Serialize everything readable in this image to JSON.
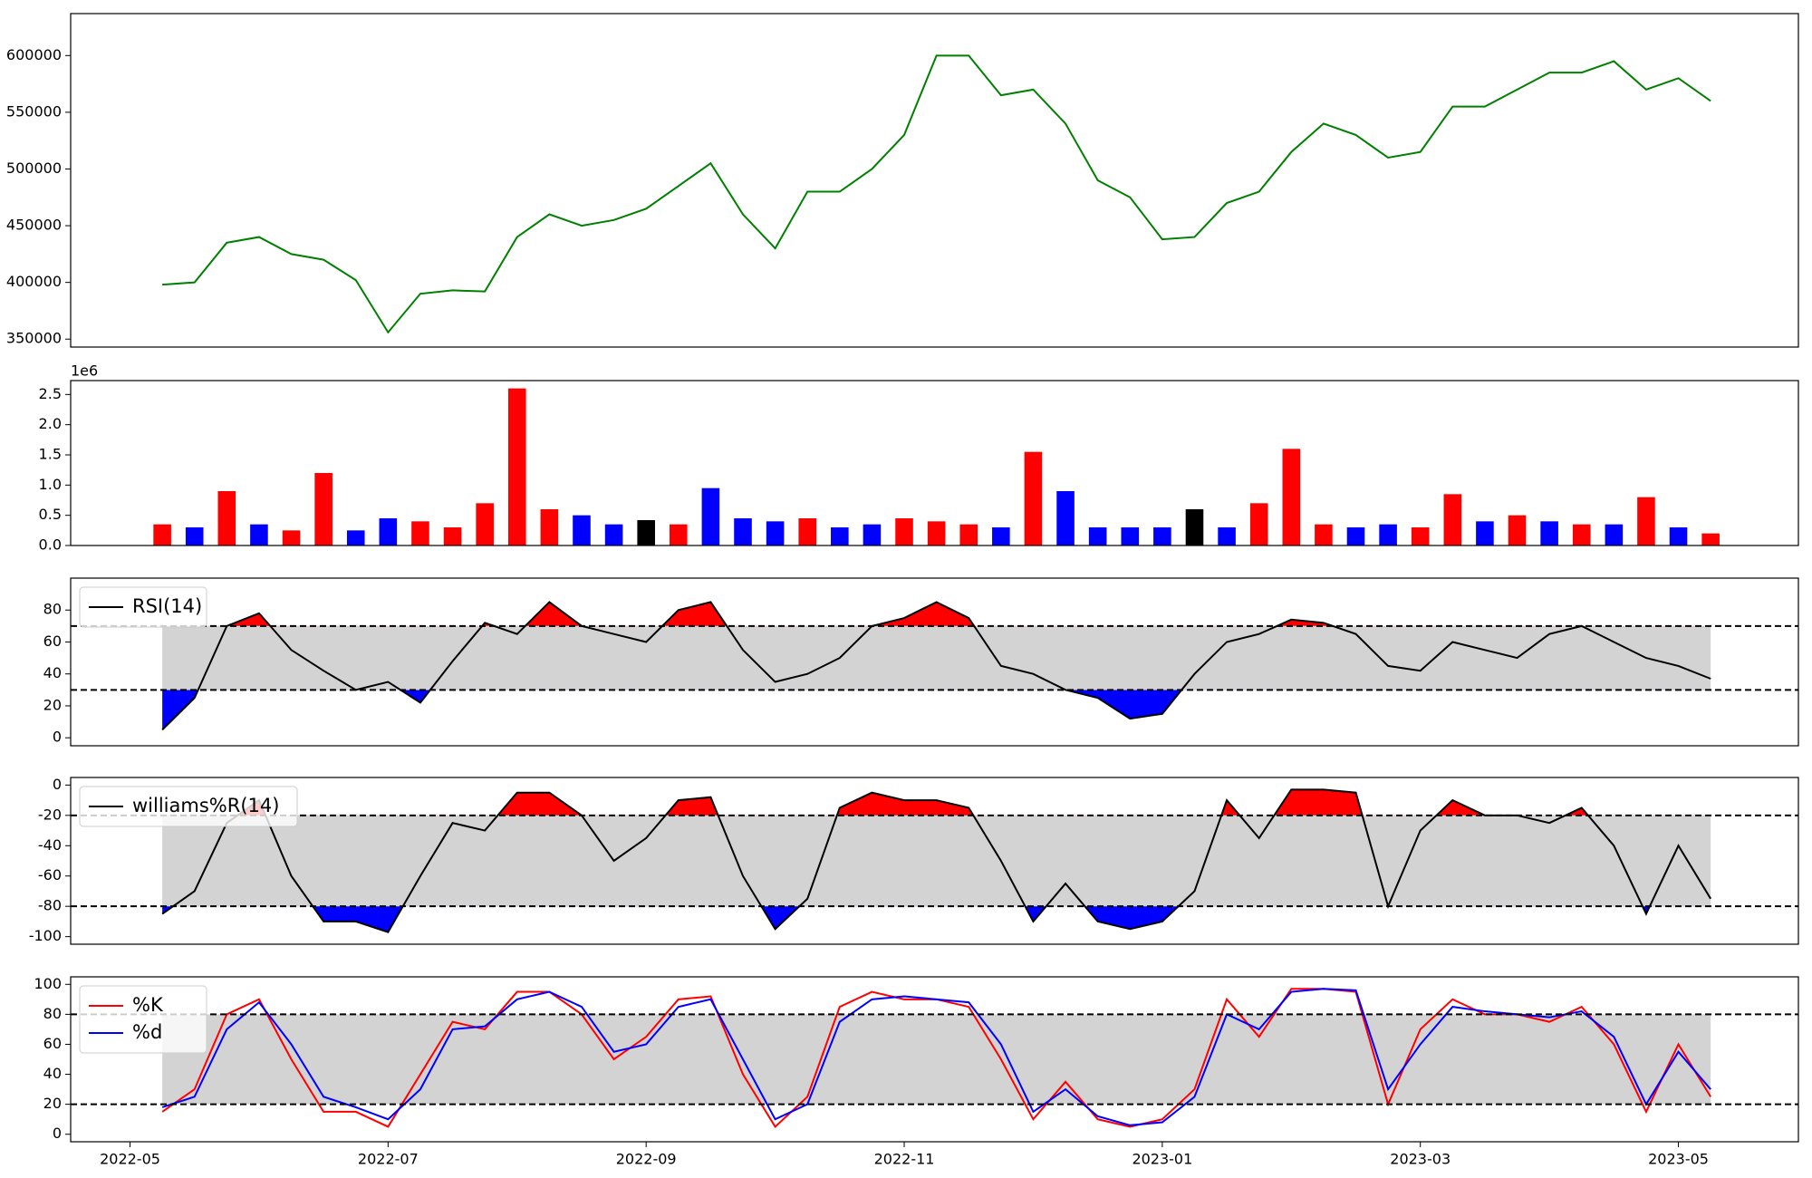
{
  "chart_data": [
    {
      "type": "line",
      "ylim": [
        343000,
        637000
      ],
      "yticks": [
        350000,
        400000,
        450000,
        500000,
        550000,
        600000
      ],
      "series": [
        {
          "color": "#008000",
          "values": [
            398000,
            400000,
            435000,
            440000,
            425000,
            420000,
            402000,
            356000,
            390000,
            393000,
            392000,
            440000,
            460000,
            450000,
            455000,
            465000,
            485000,
            505000,
            460000,
            430000,
            480000,
            480000,
            500000,
            530000,
            600000,
            600000,
            565000,
            570000,
            540000,
            490000,
            475000,
            438000,
            440000,
            470000,
            480000,
            515000,
            540000,
            530000,
            510000,
            515000,
            555000,
            555000,
            570000,
            585000,
            585000,
            595000,
            570000,
            580000,
            560000
          ]
        }
      ]
    },
    {
      "type": "bar",
      "offset_label": "1e6",
      "ylim": [
        0,
        2.73
      ],
      "yticks": [
        {
          "value": 0,
          "label": "0.0"
        },
        0.5,
        {
          "value": 1,
          "label": "1.0"
        },
        1.5,
        {
          "value": 2,
          "label": "2.0"
        },
        2.5
      ],
      "values": [
        0.35,
        0.3,
        0.9,
        0.35,
        0.25,
        1.2,
        0.25,
        0.45,
        0.4,
        0.3,
        0.7,
        2.6,
        0.6,
        0.5,
        0.35,
        0.42,
        0.35,
        0.95,
        0.45,
        0.4,
        0.45,
        0.3,
        0.35,
        0.45,
        0.4,
        0.35,
        0.3,
        1.55,
        0.9,
        0.3,
        0.3,
        0.3,
        0.6,
        0.3,
        0.7,
        1.6,
        0.35,
        0.3,
        0.35,
        0.3,
        0.85,
        0.4,
        0.5,
        0.4,
        0.35,
        0.35,
        0.8,
        0.3,
        0.2
      ],
      "colors": [
        "red",
        "blue",
        "red",
        "blue",
        "red",
        "red",
        "blue",
        "blue",
        "red",
        "red",
        "red",
        "red",
        "red",
        "blue",
        "blue",
        "black",
        "red",
        "blue",
        "blue",
        "blue",
        "red",
        "blue",
        "blue",
        "red",
        "red",
        "red",
        "blue",
        "red",
        "blue",
        "blue",
        "blue",
        "blue",
        "black",
        "blue",
        "red",
        "red",
        "red",
        "blue",
        "blue",
        "red",
        "red",
        "blue",
        "red",
        "blue",
        "red",
        "blue",
        "red",
        "blue",
        "red"
      ]
    },
    {
      "type": "oscillator",
      "ylim": [
        -5,
        100
      ],
      "yticks": [
        0,
        20,
        40,
        60,
        80
      ],
      "levels": [
        30,
        70
      ],
      "band_color": "#d3d3d3",
      "upper_color": "red",
      "lower_color": "blue",
      "legend": "upper left",
      "series": [
        {
          "name": "RSI(14)",
          "color": "black",
          "values": [
            5,
            25,
            70,
            78,
            55,
            42,
            30,
            35,
            22,
            48,
            72,
            65,
            85,
            70,
            65,
            60,
            80,
            85,
            55,
            35,
            40,
            50,
            70,
            75,
            85,
            75,
            45,
            40,
            30,
            25,
            12,
            15,
            40,
            60,
            65,
            74,
            72,
            65,
            45,
            42,
            60,
            55,
            50,
            65,
            70,
            60,
            50,
            45,
            37
          ]
        }
      ]
    },
    {
      "type": "oscillator",
      "ylim": [
        -105,
        5
      ],
      "yticks": [
        -100,
        -80,
        -60,
        -40,
        -20,
        0
      ],
      "levels": [
        -80,
        -20
      ],
      "band_color": "#d3d3d3",
      "upper_color": "red",
      "lower_color": "blue",
      "legend": "upper left",
      "series": [
        {
          "name": "williams%R(14)",
          "color": "black",
          "values": [
            -85,
            -70,
            -25,
            -10,
            -60,
            -90,
            -90,
            -97,
            -60,
            -25,
            -30,
            -5,
            -5,
            -20,
            -50,
            -35,
            -10,
            -8,
            -60,
            -95,
            -75,
            -15,
            -5,
            -10,
            -10,
            -15,
            -50,
            -90,
            -65,
            -90,
            -95,
            -90,
            -70,
            -10,
            -35,
            -3,
            -3,
            -5,
            -80,
            -30,
            -10,
            -20,
            -20,
            -25,
            -15,
            -40,
            -85,
            -40,
            -75
          ]
        }
      ]
    },
    {
      "type": "line",
      "ylim": [
        -5,
        105
      ],
      "yticks": [
        0,
        20,
        40,
        60,
        80,
        100
      ],
      "levels": [
        20,
        80
      ],
      "band_color": "#d3d3d3",
      "legend": "upper left",
      "x": [
        4.25,
        4.5,
        4.75,
        5,
        5.25,
        5.5,
        5.75,
        6,
        6.25,
        6.5,
        6.75,
        7,
        7.25,
        7.5,
        7.75,
        8,
        8.25,
        8.5,
        8.75,
        9,
        9.25,
        9.5,
        9.75,
        10,
        10.25,
        10.5,
        10.75,
        11,
        11.25,
        11.5,
        11.75,
        12,
        12.25,
        12.5,
        12.75,
        13,
        13.25,
        13.5,
        13.75,
        14,
        14.25,
        14.5,
        14.75,
        15,
        15.25,
        15.5,
        15.75,
        16,
        16.25
      ],
      "xlim": [
        3.54,
        16.93
      ],
      "xticks": [
        {
          "value": 4,
          "label": "2022-05"
        },
        {
          "value": 6,
          "label": "2022-07"
        },
        {
          "value": 8,
          "label": "2022-09"
        },
        {
          "value": 10,
          "label": "2022-11"
        },
        {
          "value": 12,
          "label": "2023-01"
        },
        {
          "value": 14,
          "label": "2023-03"
        },
        {
          "value": 16,
          "label": "2023-05"
        }
      ],
      "series": [
        {
          "name": "%K",
          "color": "red",
          "values": [
            15,
            30,
            80,
            90,
            50,
            15,
            15,
            5,
            40,
            75,
            70,
            95,
            95,
            80,
            50,
            65,
            90,
            92,
            40,
            5,
            25,
            85,
            95,
            90,
            90,
            85,
            50,
            10,
            35,
            10,
            5,
            10,
            30,
            90,
            65,
            97,
            97,
            95,
            20,
            70,
            90,
            80,
            80,
            75,
            85,
            60,
            15,
            60,
            25
          ]
        },
        {
          "name": "%d",
          "color": "blue",
          "values": [
            18,
            25,
            70,
            88,
            60,
            25,
            18,
            10,
            30,
            70,
            72,
            90,
            95,
            85,
            55,
            60,
            85,
            90,
            50,
            10,
            20,
            75,
            90,
            92,
            90,
            88,
            60,
            15,
            30,
            12,
            6,
            8,
            25,
            80,
            70,
            95,
            97,
            96,
            30,
            60,
            85,
            82,
            80,
            78,
            82,
            65,
            20,
            55,
            30
          ]
        }
      ]
    }
  ]
}
